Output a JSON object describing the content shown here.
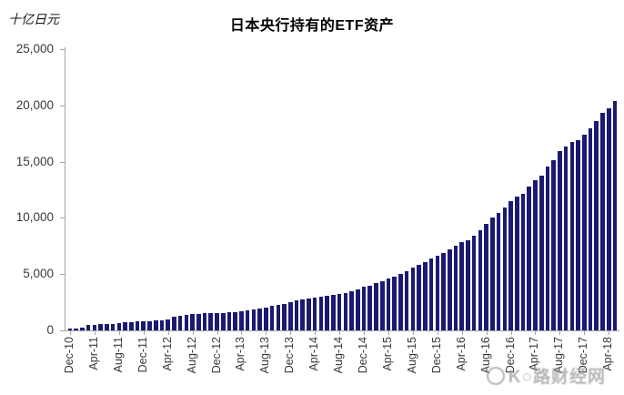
{
  "page": {
    "background": "#ffffff"
  },
  "chart_data": {
    "type": "bar",
    "title": "日本央行持有的ETF资产",
    "ylabel": "十亿日元",
    "xlabel": "",
    "ylim": [
      0,
      25000
    ],
    "ytick_step": 5000,
    "ytick_labels": [
      "0",
      "5,000",
      "10,000",
      "15,000",
      "20,000",
      "25,000"
    ],
    "xtick_every": 4,
    "grid": false,
    "legend_position": "none",
    "bar_color": "#1b1a72",
    "axis_color": "#a3a3a3",
    "categories": [
      "Dec-10",
      "Jan-11",
      "Feb-11",
      "Mar-11",
      "Apr-11",
      "May-11",
      "Jun-11",
      "Jul-11",
      "Aug-11",
      "Sep-11",
      "Oct-11",
      "Nov-11",
      "Dec-11",
      "Jan-12",
      "Feb-12",
      "Mar-12",
      "Apr-12",
      "May-12",
      "Jun-12",
      "Jul-12",
      "Aug-12",
      "Sep-12",
      "Oct-12",
      "Nov-12",
      "Dec-12",
      "Jan-13",
      "Feb-13",
      "Mar-13",
      "Apr-13",
      "May-13",
      "Jun-13",
      "Jul-13",
      "Aug-13",
      "Sep-13",
      "Oct-13",
      "Nov-13",
      "Dec-13",
      "Jan-14",
      "Feb-14",
      "Mar-14",
      "Apr-14",
      "May-14",
      "Jun-14",
      "Jul-14",
      "Aug-14",
      "Sep-14",
      "Oct-14",
      "Nov-14",
      "Dec-14",
      "Jan-15",
      "Feb-15",
      "Mar-15",
      "Apr-15",
      "May-15",
      "Jun-15",
      "Jul-15",
      "Aug-15",
      "Sep-15",
      "Oct-15",
      "Nov-15",
      "Dec-15",
      "Jan-16",
      "Feb-16",
      "Mar-16",
      "Apr-16",
      "May-16",
      "Jun-16",
      "Jul-16",
      "Aug-16",
      "Sep-16",
      "Oct-16",
      "Nov-16",
      "Dec-16",
      "Jan-17",
      "Feb-17",
      "Mar-17",
      "Apr-17",
      "May-17",
      "Jun-17",
      "Jul-17",
      "Aug-17",
      "Sep-17",
      "Oct-17",
      "Nov-17",
      "Dec-17",
      "Jan-18",
      "Feb-18",
      "Mar-18",
      "Apr-18",
      "May-18"
    ],
    "values": [
      155,
      184,
      214,
      483,
      502,
      531,
      567,
      582,
      661,
      726,
      754,
      800,
      812,
      843,
      857,
      894,
      1008,
      1182,
      1264,
      1340,
      1431,
      1473,
      1503,
      1510,
      1541,
      1561,
      1627,
      1653,
      1697,
      1797,
      1860,
      1950,
      2059,
      2169,
      2244,
      2345,
      2526,
      2630,
      2760,
      2850,
      2900,
      2965,
      3050,
      3130,
      3220,
      3300,
      3450,
      3630,
      3850,
      4000,
      4180,
      4400,
      4600,
      4800,
      5000,
      5250,
      5560,
      5830,
      6090,
      6360,
      6630,
      6900,
      7200,
      7500,
      7850,
      8010,
      8410,
      8900,
      9470,
      10030,
      10440,
      10920,
      11490,
      11890,
      12140,
      12800,
      13350,
      13760,
      14570,
      15130,
      15940,
      16350,
      16750,
      16900,
      17390,
      17960,
      18600,
      19330,
      19740,
      20390
    ]
  },
  "watermark": {
    "text": "K○路财经网",
    "color": "#9a9a9a"
  }
}
